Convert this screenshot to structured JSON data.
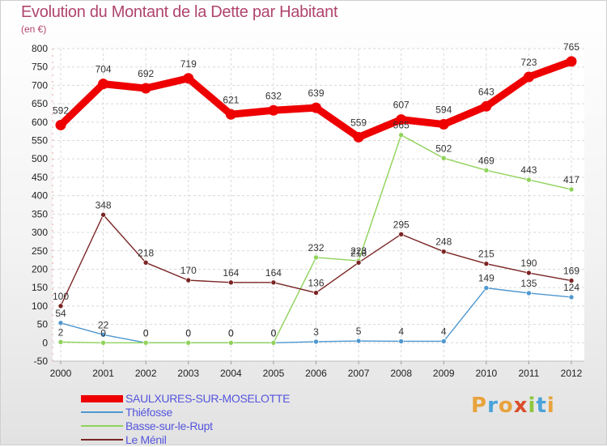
{
  "header": {
    "title": "Evolution du Montant de la Dette par Habitant",
    "unit": "(en €)"
  },
  "logo": {
    "text": "Proxiti",
    "colors": [
      "#e8a33d",
      "#49a3d8",
      "#e8a33d",
      "#d94f2a",
      "#8cc63e",
      "#49a3d8",
      "#e8a33d"
    ]
  },
  "chart_data": {
    "type": "line",
    "title": "Evolution du Montant de la Dette par Habitant",
    "subtitle": "(en €)",
    "x": [
      2000,
      2001,
      2002,
      2003,
      2004,
      2005,
      2006,
      2007,
      2008,
      2009,
      2010,
      2011,
      2012
    ],
    "ylim": [
      -50,
      800
    ],
    "ytick_step": 50,
    "grid": true,
    "legend_position": "bottom-left",
    "series": [
      {
        "name": "SAULXURES-SUR-MOSELOTTE",
        "color": "#ee0000",
        "width": 9,
        "values": [
          592,
          704,
          692,
          719,
          621,
          632,
          639,
          559,
          607,
          594,
          643,
          723,
          765
        ]
      },
      {
        "name": "Thiéfosse",
        "color": "#4f97cf",
        "width": 1.4,
        "values": [
          54,
          22,
          0,
          0,
          0,
          0,
          3,
          5,
          4,
          4,
          149,
          135,
          124
        ]
      },
      {
        "name": "Basse-sur-le-Rupt",
        "color": "#8fd35a",
        "width": 1.4,
        "values": [
          2,
          0,
          0,
          0,
          0,
          0,
          232,
          223,
          565,
          502,
          469,
          443,
          417
        ]
      },
      {
        "name": "Le Ménil",
        "color": "#7a2424",
        "width": 1.4,
        "values": [
          100,
          348,
          218,
          170,
          164,
          164,
          136,
          218,
          295,
          248,
          215,
          190,
          169
        ]
      }
    ],
    "data_labels": [
      [
        "592",
        "704",
        "692",
        "719",
        "621",
        "632",
        "639",
        "559",
        "607",
        "594",
        "643",
        "723",
        "765"
      ],
      [
        "54",
        "22",
        "0",
        "0",
        "0",
        "0",
        "3",
        "5",
        "4",
        "4",
        "149",
        "135",
        "124"
      ],
      [
        "2",
        "0",
        "0",
        "0",
        "0",
        "0",
        "232",
        "223",
        "565",
        "502",
        "469",
        "443",
        "417"
      ],
      [
        "100",
        "348",
        "218",
        "170",
        "164",
        "164",
        "136",
        "218",
        "295",
        "248",
        "215",
        "190",
        "169"
      ]
    ]
  }
}
